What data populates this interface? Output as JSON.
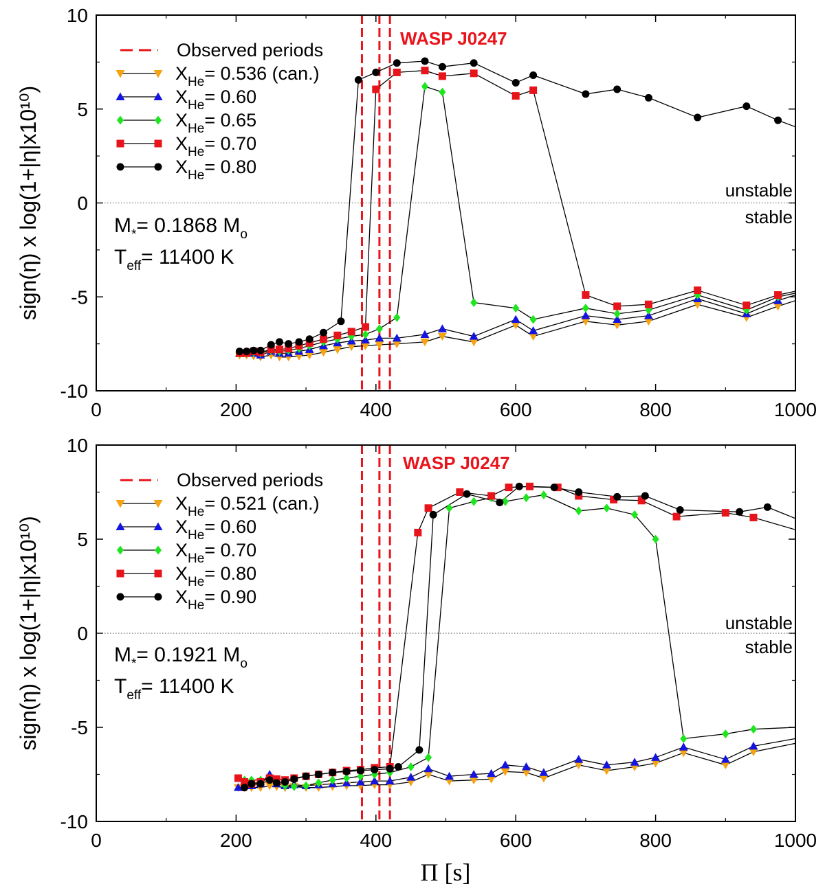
{
  "colors": {
    "observed": "#e8141b",
    "series": [
      "#f5a312",
      "#1414e0",
      "#1ee61e",
      "#e8141b",
      "#000000"
    ],
    "line": "#000000"
  },
  "x_axis_label": "Π [s]",
  "y_axis_label": "sign(η) x log(1+|η|x10¹⁰)",
  "chart_data": [
    {
      "type": "line",
      "title": "WASP J0247",
      "xlabel": "Π [s]",
      "ylabel": "sign(η) x log(1+|η|x10¹⁰)",
      "xlim": [
        0,
        1000
      ],
      "ylim": [
        -10,
        10
      ],
      "xticks": [
        0,
        200,
        400,
        600,
        800,
        1000
      ],
      "yticks": [
        -10,
        -5,
        0,
        5,
        10
      ],
      "xtick_labels": [
        "0",
        "200",
        "400",
        "600",
        "800",
        "1000"
      ],
      "ytick_labels": [
        "-10",
        "-5",
        "0",
        "5",
        "10"
      ],
      "observed_periods": [
        380,
        405,
        420
      ],
      "legend_observed": "Observed periods",
      "region_labels": [
        "unstable",
        "stable"
      ],
      "mass_text": "M",
      "mass_sub": "*",
      "mass_value": "= 0.1868 M",
      "mass_unit_sub": "o",
      "teff_text": "T",
      "teff_sub": "eff",
      "teff_value": "= 11400 K",
      "series": [
        {
          "name": "X_He= 0.536 (can.)",
          "value_label": "= 0.536 (can.)",
          "marker": "triangle-down",
          "x": [
            205,
            215,
            225,
            235,
            250,
            262,
            275,
            290,
            305,
            325,
            345,
            365,
            385,
            405,
            430,
            470,
            495,
            540,
            600,
            625,
            700,
            745,
            790,
            860,
            930,
            975,
            1000
          ],
          "y": [
            -8.1,
            -8.1,
            -8.15,
            -8.2,
            -8.1,
            -8.2,
            -8.2,
            -8.15,
            -8.1,
            -7.95,
            -7.8,
            -7.65,
            -7.6,
            -7.55,
            -7.5,
            -7.4,
            -7.1,
            -7.4,
            -6.5,
            -7.1,
            -6.3,
            -6.5,
            -6.3,
            -5.4,
            -6.1,
            -5.5,
            -5.2
          ]
        },
        {
          "name": "X_He= 0.60",
          "value_label": "= 0.60",
          "marker": "triangle-up",
          "x": [
            205,
            215,
            225,
            235,
            250,
            262,
            275,
            290,
            305,
            325,
            345,
            365,
            385,
            405,
            430,
            470,
            495,
            540,
            600,
            625,
            700,
            745,
            790,
            860,
            930,
            975,
            1000
          ],
          "y": [
            -8.0,
            -8.0,
            -8.0,
            -8.1,
            -7.9,
            -8.0,
            -8.0,
            -7.9,
            -7.8,
            -7.6,
            -7.45,
            -7.35,
            -7.3,
            -7.2,
            -7.2,
            -7.0,
            -6.7,
            -7.1,
            -6.2,
            -6.8,
            -6.0,
            -6.2,
            -6.0,
            -5.1,
            -5.9,
            -5.2,
            -4.9
          ]
        },
        {
          "name": "X_He= 0.65",
          "value_label": "= 0.65",
          "marker": "diamond",
          "x": [
            205,
            215,
            225,
            235,
            250,
            262,
            275,
            290,
            305,
            325,
            345,
            365,
            385,
            405,
            430,
            470,
            495,
            540,
            600,
            625,
            700,
            745,
            790,
            860,
            930,
            975,
            1000
          ],
          "y": [
            -8.0,
            -8.0,
            -7.95,
            -8.0,
            -7.85,
            -7.9,
            -7.85,
            -7.75,
            -7.6,
            -7.4,
            -7.25,
            -7.1,
            -7.0,
            -6.7,
            -6.1,
            6.2,
            5.9,
            -5.3,
            -5.6,
            -6.2,
            -5.6,
            -5.9,
            -5.7,
            -4.9,
            -5.7,
            -5.0,
            -4.8
          ]
        },
        {
          "name": "X_He= 0.70",
          "value_label": "= 0.70",
          "marker": "square",
          "x": [
            205,
            215,
            225,
            235,
            250,
            262,
            275,
            290,
            305,
            325,
            345,
            365,
            385,
            400,
            430,
            470,
            495,
            540,
            600,
            625,
            700,
            745,
            790,
            860,
            930,
            975,
            1000
          ],
          "y": [
            -8.0,
            -8.0,
            -7.9,
            -7.95,
            -7.8,
            -7.8,
            -7.75,
            -7.6,
            -7.45,
            -7.25,
            -7.05,
            -6.85,
            -6.6,
            6.05,
            6.95,
            7.05,
            6.75,
            6.9,
            5.7,
            6.0,
            -4.9,
            -5.5,
            -5.4,
            -4.65,
            -5.45,
            -4.9,
            -4.7
          ]
        },
        {
          "name": "X_He= 0.80",
          "value_label": "= 0.80",
          "marker": "circle",
          "x": [
            205,
            215,
            225,
            235,
            250,
            262,
            275,
            290,
            305,
            325,
            350,
            375,
            400,
            430,
            470,
            495,
            540,
            600,
            625,
            700,
            745,
            790,
            860,
            930,
            975,
            1000
          ],
          "y": [
            -7.9,
            -7.9,
            -7.85,
            -7.85,
            -7.55,
            -7.4,
            -7.5,
            -7.4,
            -7.25,
            -6.9,
            -6.3,
            6.55,
            6.95,
            7.45,
            7.55,
            7.25,
            7.45,
            6.4,
            6.8,
            5.8,
            6.05,
            5.6,
            4.55,
            5.15,
            4.4,
            4.05
          ]
        }
      ]
    },
    {
      "type": "line",
      "title": "WASP J0247",
      "xlabel": "Π [s]",
      "ylabel": "sign(η) x log(1+|η|x10¹⁰)",
      "xlim": [
        0,
        1000
      ],
      "ylim": [
        -10,
        10
      ],
      "xticks": [
        0,
        200,
        400,
        600,
        800,
        1000
      ],
      "yticks": [
        -10,
        -5,
        0,
        5,
        10
      ],
      "xtick_labels": [
        "0",
        "200",
        "400",
        "600",
        "800",
        "1000"
      ],
      "ytick_labels": [
        "-10",
        "-5",
        "0",
        "5",
        "10"
      ],
      "observed_periods": [
        380,
        405,
        420
      ],
      "legend_observed": "Observed periods",
      "region_labels": [
        "unstable",
        "stable"
      ],
      "mass_text": "M",
      "mass_sub": "*",
      "mass_value": "= 0.1921 M",
      "mass_unit_sub": "o",
      "teff_text": "T",
      "teff_sub": "eff",
      "teff_value": "= 11400 K",
      "series": [
        {
          "name": "X_He= 0.521 (can.)",
          "value_label": "= 0.521 (can.)",
          "marker": "triangle-down",
          "x": [
            203,
            212,
            222,
            235,
            248,
            258,
            270,
            283,
            300,
            318,
            338,
            358,
            378,
            398,
            420,
            450,
            475,
            505,
            540,
            565,
            585,
            615,
            640,
            690,
            730,
            770,
            800,
            840,
            900,
            940,
            1000
          ],
          "y": [
            -8.2,
            -8.2,
            -8.2,
            -8.2,
            -8.1,
            -8.15,
            -8.2,
            -8.15,
            -8.2,
            -8.2,
            -8.15,
            -8.1,
            -8.1,
            -8.05,
            -8.05,
            -7.9,
            -7.5,
            -7.85,
            -7.8,
            -7.75,
            -7.35,
            -7.4,
            -7.7,
            -7.0,
            -7.3,
            -7.1,
            -6.9,
            -6.35,
            -7.0,
            -6.3,
            -5.85
          ]
        },
        {
          "name": "X_He= 0.60",
          "value_label": "= 0.60",
          "marker": "triangle-up",
          "x": [
            203,
            212,
            222,
            235,
            248,
            258,
            270,
            283,
            300,
            318,
            338,
            358,
            378,
            398,
            420,
            450,
            475,
            505,
            540,
            565,
            585,
            615,
            640,
            690,
            730,
            770,
            800,
            840,
            900,
            940,
            1000
          ],
          "y": [
            -8.2,
            -8.1,
            -8.1,
            -8.0,
            -7.5,
            -8.0,
            -8.1,
            -8.05,
            -8.1,
            -8.05,
            -8.0,
            -7.95,
            -7.9,
            -7.85,
            -7.85,
            -7.65,
            -7.2,
            -7.6,
            -7.5,
            -7.45,
            -7.0,
            -7.1,
            -7.4,
            -6.7,
            -7.0,
            -6.85,
            -6.6,
            -6.05,
            -6.7,
            -6.0,
            -5.6
          ]
        },
        {
          "name": "X_He= 0.70",
          "value_label": "= 0.70",
          "marker": "diamond",
          "x": [
            212,
            222,
            235,
            248,
            258,
            270,
            283,
            300,
            318,
            338,
            358,
            378,
            398,
            420,
            450,
            475,
            505,
            540,
            565,
            585,
            615,
            640,
            690,
            730,
            770,
            800,
            840,
            900,
            940,
            1000
          ],
          "y": [
            -7.8,
            -7.8,
            -7.8,
            -7.7,
            -7.9,
            -8.1,
            -8.15,
            -8.1,
            -7.95,
            -7.8,
            -7.7,
            -7.6,
            -7.5,
            -7.4,
            -7.1,
            -6.6,
            6.65,
            7.0,
            7.2,
            7.0,
            7.2,
            7.35,
            6.5,
            6.65,
            6.3,
            5.0,
            -5.6,
            -5.35,
            -5.1,
            -5.0
          ]
        },
        {
          "name": "X_He= 0.80",
          "value_label": "= 0.80",
          "marker": "square",
          "x": [
            203,
            212,
            222,
            235,
            248,
            258,
            270,
            283,
            300,
            318,
            338,
            358,
            378,
            398,
            420,
            460,
            475,
            520,
            565,
            590,
            620,
            660,
            690,
            740,
            780,
            830,
            900,
            940,
            1000
          ],
          "y": [
            -7.7,
            -7.9,
            -8.0,
            -7.9,
            -7.7,
            -7.75,
            -7.8,
            -7.7,
            -7.6,
            -7.5,
            -7.4,
            -7.3,
            -7.25,
            -7.15,
            -7.1,
            5.35,
            6.65,
            7.5,
            7.3,
            7.75,
            7.8,
            7.75,
            7.3,
            7.1,
            7.05,
            6.2,
            6.4,
            6.15,
            5.5
          ]
        },
        {
          "name": "X_He= 0.90",
          "value_label": "= 0.90",
          "marker": "circle",
          "x": [
            212,
            222,
            235,
            248,
            258,
            270,
            283,
            300,
            318,
            338,
            358,
            378,
            398,
            420,
            432,
            462,
            482,
            530,
            577,
            605,
            655,
            690,
            745,
            785,
            835,
            920,
            960,
            1000
          ],
          "y": [
            -8.2,
            -8.0,
            -8.0,
            -7.8,
            -7.95,
            -7.9,
            -7.75,
            -7.6,
            -7.5,
            -7.4,
            -7.35,
            -7.3,
            -7.25,
            -7.2,
            -7.1,
            -6.2,
            6.3,
            7.4,
            6.95,
            7.8,
            7.75,
            7.5,
            7.25,
            7.3,
            6.55,
            6.45,
            6.7,
            6.1
          ]
        }
      ]
    }
  ]
}
